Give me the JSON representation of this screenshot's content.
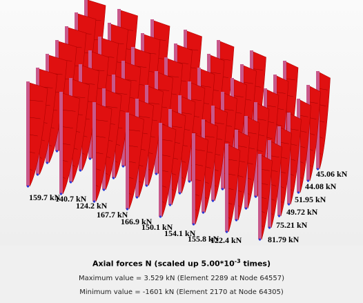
{
  "labels": [
    "159.7 kN",
    "140.7 kN",
    "124.2 kN",
    "167.7 kN",
    "166.9 kN",
    "150.1 kN",
    "154.1 kN",
    "155.8 kN",
    "122.4 kN",
    "81.79 kN",
    "75.21 kN",
    "49.72 kN",
    "51.95 kN",
    "44.08 kN",
    "45.06 kN"
  ],
  "caption": {
    "title": "Axial forces N (scaled up 5.00*10",
    "exponent": "-3",
    "title_end": " times)",
    "maximum": "Maximum value = 3.529 kN (Element 2289 at Node 64557)",
    "minimum": "Minimum value = -1601 kN (Element 2170 at Node 64305)"
  }
}
